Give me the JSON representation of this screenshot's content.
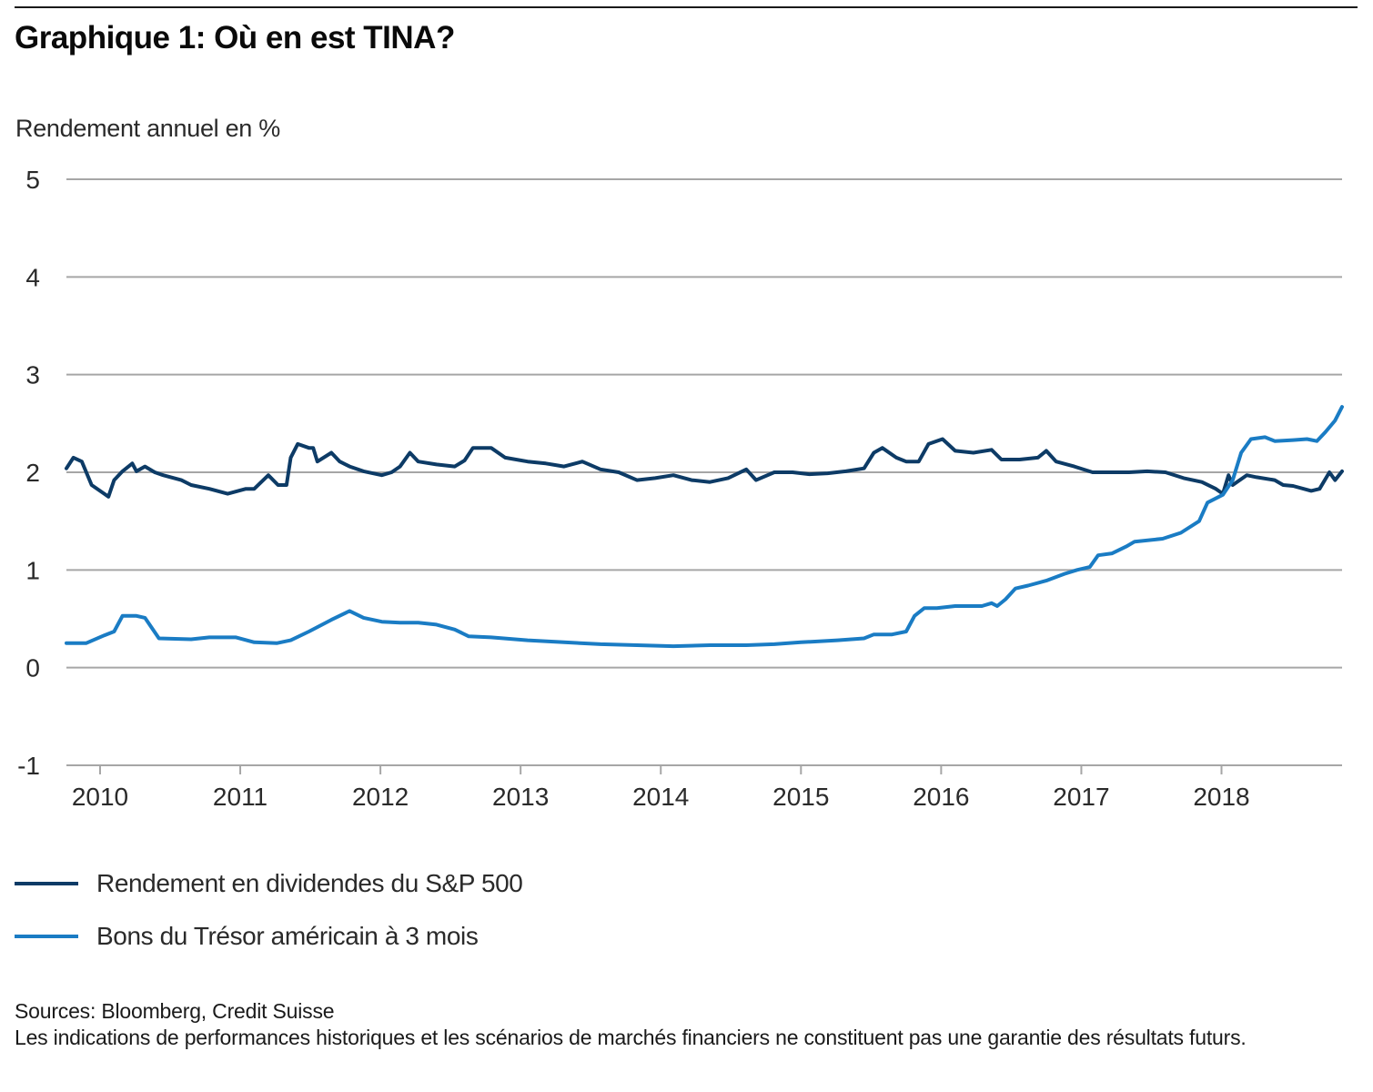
{
  "title": "Graphique 1: Où en est TINA?",
  "y_axis_label": "Rendement annuel en %",
  "footer": {
    "sources": "Sources: Bloomberg, Credit Suisse",
    "disclaimer": "Les indications de performances historiques et les scénarios de marchés financiers ne constituent pas une garantie des résultats futurs."
  },
  "colors": {
    "sp500": "#0d3b66",
    "tbill": "#1a7cc4",
    "grid": "#a6a6a6",
    "axis": "#a6a6a6"
  },
  "chart_data": {
    "type": "line",
    "title": "Graphique 1: Où en est TINA?",
    "xlabel": "",
    "ylabel": "Rendement annuel en %",
    "ylim": [
      -1,
      5
    ],
    "xlim": [
      2009.76,
      2018.86
    ],
    "y_ticks": [
      "5",
      "4",
      "3",
      "2",
      "1",
      "0",
      "-1"
    ],
    "y_tick_values": [
      5,
      4,
      3,
      2,
      1,
      0,
      -1
    ],
    "x_ticks": [
      "2010",
      "2011",
      "2012",
      "2013",
      "2014",
      "2015",
      "2016",
      "2017",
      "2018"
    ],
    "x_tick_values": [
      2010,
      2011,
      2012,
      2013,
      2014,
      2015,
      2016,
      2017,
      2018
    ],
    "grid": "horizontal",
    "legend_position": "bottom-left",
    "series": [
      {
        "name": "Rendement en dividendes du S&P 500",
        "color_key": "sp500",
        "x": [
          2009.76,
          2009.81,
          2009.87,
          2009.94,
          2010.03,
          2010.06,
          2010.1,
          2010.16,
          2010.23,
          2010.26,
          2010.32,
          2010.39,
          2010.45,
          2010.58,
          2010.65,
          2010.78,
          2010.91,
          2011.04,
          2011.1,
          2011.2,
          2011.27,
          2011.33,
          2011.36,
          2011.41,
          2011.49,
          2011.52,
          2011.55,
          2011.65,
          2011.71,
          2011.78,
          2011.88,
          2012.01,
          2012.08,
          2012.14,
          2012.21,
          2012.27,
          2012.4,
          2012.53,
          2012.6,
          2012.66,
          2012.79,
          2012.89,
          2013.05,
          2013.18,
          2013.31,
          2013.44,
          2013.57,
          2013.7,
          2013.83,
          2013.96,
          2014.09,
          2014.22,
          2014.35,
          2014.48,
          2014.61,
          2014.68,
          2014.81,
          2014.94,
          2015.06,
          2015.19,
          2015.32,
          2015.45,
          2015.52,
          2015.58,
          2015.68,
          2015.75,
          2015.84,
          2015.91,
          2016.01,
          2016.1,
          2016.23,
          2016.36,
          2016.43,
          2016.56,
          2016.69,
          2016.75,
          2016.82,
          2016.95,
          2017.08,
          2017.21,
          2017.34,
          2017.47,
          2017.6,
          2017.73,
          2017.86,
          2017.96,
          2018.01,
          2018.05,
          2018.08,
          2018.18,
          2018.25,
          2018.38,
          2018.44,
          2018.51,
          2018.64,
          2018.7,
          2018.77,
          2018.81,
          2018.86
        ],
        "values": [
          2.04,
          2.15,
          2.11,
          1.87,
          1.78,
          1.75,
          1.92,
          2.01,
          2.09,
          2.01,
          2.06,
          2.0,
          1.97,
          1.92,
          1.87,
          1.83,
          1.78,
          1.83,
          1.83,
          1.97,
          1.87,
          1.87,
          2.15,
          2.29,
          2.25,
          2.25,
          2.11,
          2.2,
          2.11,
          2.06,
          2.01,
          1.97,
          2.0,
          2.06,
          2.2,
          2.11,
          2.08,
          2.06,
          2.12,
          2.25,
          2.25,
          2.15,
          2.11,
          2.09,
          2.06,
          2.11,
          2.03,
          2.0,
          1.92,
          1.94,
          1.97,
          1.92,
          1.9,
          1.94,
          2.03,
          1.92,
          2.0,
          2.0,
          1.98,
          1.99,
          2.01,
          2.04,
          2.2,
          2.25,
          2.15,
          2.11,
          2.11,
          2.29,
          2.34,
          2.22,
          2.2,
          2.23,
          2.13,
          2.13,
          2.15,
          2.22,
          2.11,
          2.06,
          2.0,
          2.0,
          2.0,
          2.01,
          2.0,
          1.94,
          1.9,
          1.83,
          1.78,
          1.97,
          1.87,
          1.97,
          1.95,
          1.92,
          1.87,
          1.86,
          1.81,
          1.83,
          2.0,
          1.92,
          2.01
        ]
      },
      {
        "name": "Bons du Trésor américain à 3 mois",
        "color_key": "tbill",
        "x": [
          2009.76,
          2009.9,
          2010.03,
          2010.1,
          2010.16,
          2010.26,
          2010.32,
          2010.42,
          2010.65,
          2010.78,
          2010.97,
          2011.1,
          2011.26,
          2011.36,
          2011.49,
          2011.65,
          2011.78,
          2011.88,
          2012.01,
          2012.14,
          2012.27,
          2012.4,
          2012.53,
          2012.63,
          2012.79,
          2013.05,
          2013.31,
          2013.57,
          2013.83,
          2014.09,
          2014.35,
          2014.61,
          2014.81,
          2015.0,
          2015.26,
          2015.45,
          2015.52,
          2015.65,
          2015.75,
          2015.81,
          2015.88,
          2015.97,
          2016.1,
          2016.29,
          2016.36,
          2016.4,
          2016.46,
          2016.53,
          2016.62,
          2016.75,
          2016.88,
          2016.97,
          2017.06,
          2017.12,
          2017.22,
          2017.32,
          2017.38,
          2017.58,
          2017.71,
          2017.84,
          2017.9,
          2018.01,
          2018.08,
          2018.14,
          2018.21,
          2018.31,
          2018.38,
          2018.51,
          2018.61,
          2018.68,
          2018.74,
          2018.81,
          2018.86
        ],
        "values": [
          0.25,
          0.25,
          0.33,
          0.37,
          0.53,
          0.53,
          0.51,
          0.3,
          0.29,
          0.31,
          0.31,
          0.26,
          0.25,
          0.28,
          0.37,
          0.49,
          0.58,
          0.51,
          0.47,
          0.46,
          0.46,
          0.44,
          0.39,
          0.32,
          0.31,
          0.28,
          0.26,
          0.24,
          0.23,
          0.22,
          0.23,
          0.23,
          0.24,
          0.26,
          0.28,
          0.3,
          0.34,
          0.34,
          0.37,
          0.53,
          0.61,
          0.61,
          0.63,
          0.63,
          0.66,
          0.63,
          0.7,
          0.81,
          0.84,
          0.89,
          0.96,
          1.0,
          1.03,
          1.15,
          1.17,
          1.24,
          1.29,
          1.32,
          1.38,
          1.5,
          1.69,
          1.77,
          1.92,
          2.2,
          2.34,
          2.36,
          2.32,
          2.33,
          2.34,
          2.32,
          2.41,
          2.53,
          2.67
        ]
      }
    ]
  }
}
